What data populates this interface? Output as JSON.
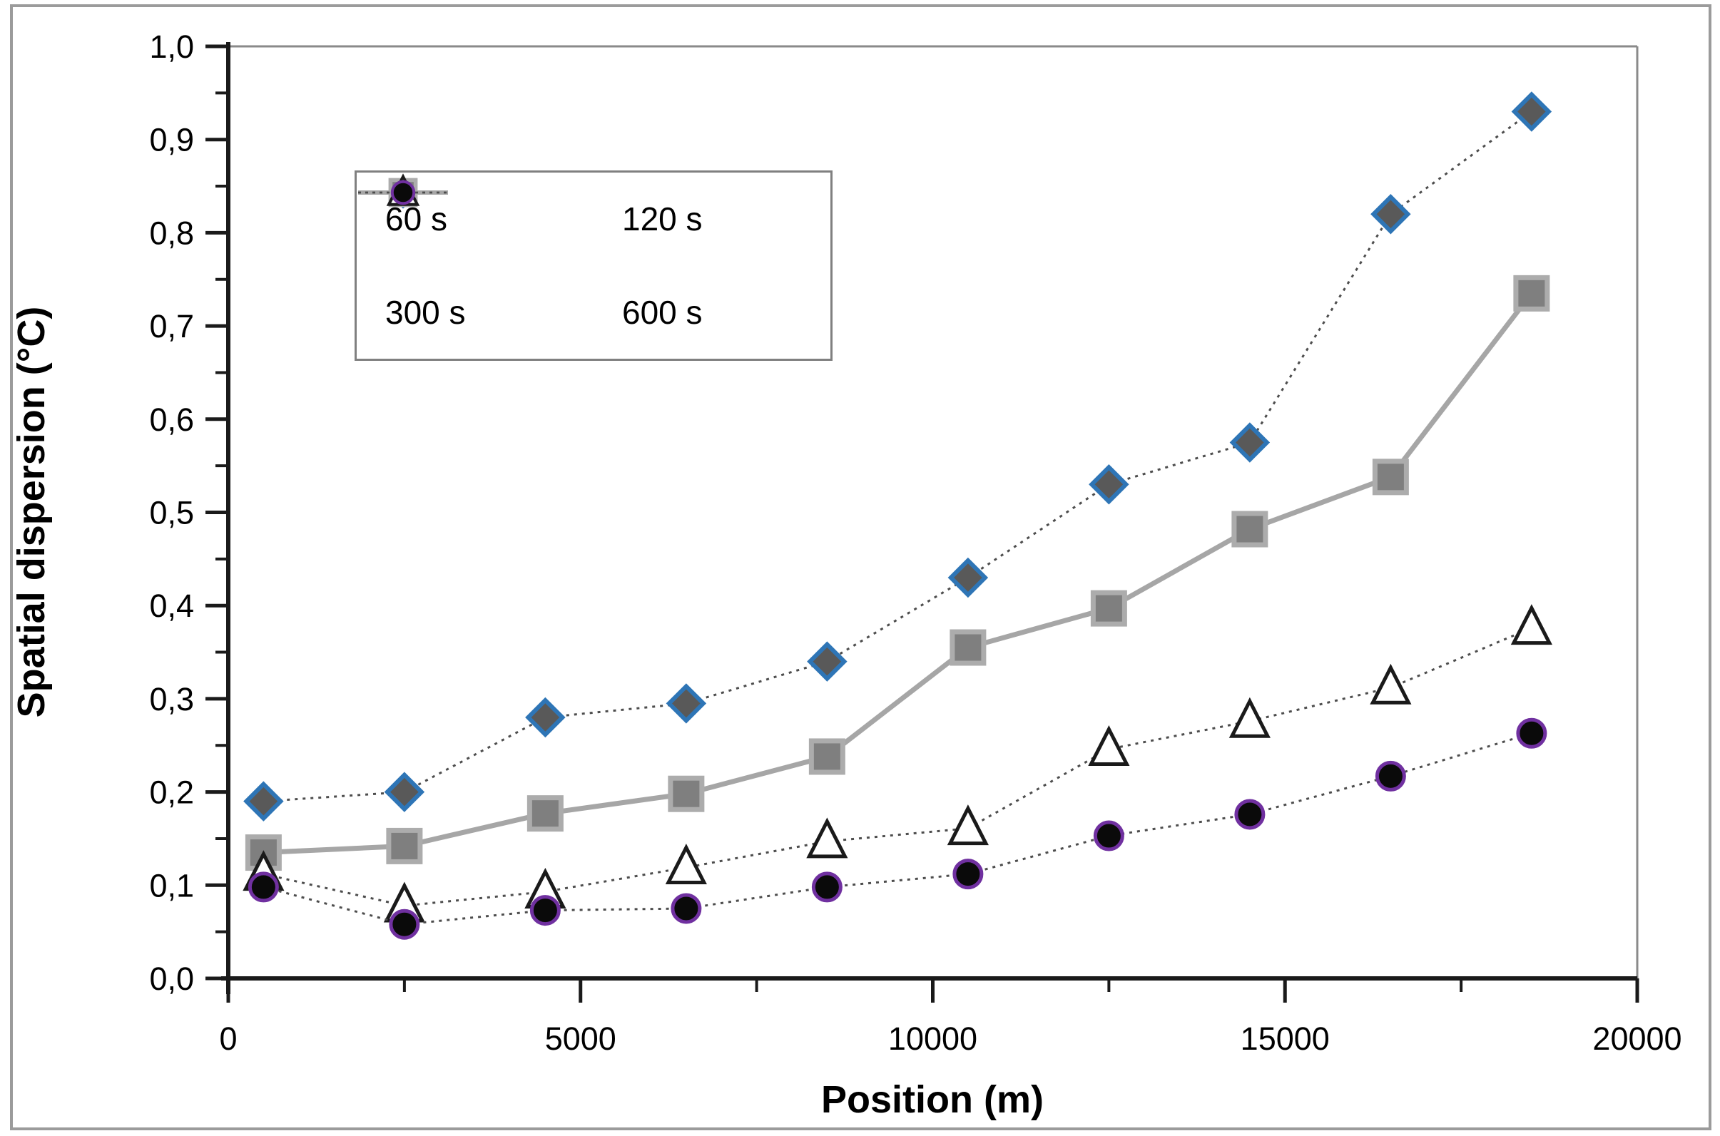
{
  "figure": {
    "frame_color": "#9b9b9b",
    "plot_border_color": "#8a8a8a",
    "axis_color": "#1a1a1a",
    "background": "#ffffff"
  },
  "chart_data": {
    "type": "line",
    "title": "",
    "xlabel": "Position (m)",
    "ylabel": "Spatial dispersion (°C)",
    "xlim": [
      0,
      20000
    ],
    "ylim": [
      0.0,
      1.0
    ],
    "grid": false,
    "legend_position": "upper-left-inside",
    "decimal_separator": ",",
    "x_major_ticks": [
      0,
      5000,
      10000,
      15000,
      20000
    ],
    "x_tick_labels": [
      "0",
      "5000",
      "10000",
      "15000",
      "20000"
    ],
    "x_minor_step": 2500,
    "y_major_step": 0.1,
    "y_minor_step": 0.05,
    "y_tick_labels": [
      "0,0",
      "0,1",
      "0,2",
      "0,3",
      "0,4",
      "0,5",
      "0,6",
      "0,7",
      "0,8",
      "0,9",
      "1,0"
    ],
    "x": [
      500,
      2500,
      4500,
      6500,
      8500,
      10500,
      12500,
      14500,
      16500,
      18500
    ],
    "series": [
      {
        "name": "60 s",
        "marker": "diamond",
        "line": "dotted",
        "line_color": "#4d4d4d",
        "marker_fill": "#595959",
        "marker_stroke": "#2E75B6",
        "values": [
          0.19,
          0.2,
          0.28,
          0.295,
          0.34,
          0.43,
          0.53,
          0.575,
          0.82,
          0.93
        ]
      },
      {
        "name": "120 s",
        "marker": "square",
        "line": "solid",
        "line_color": "#A6A6A6",
        "marker_fill": "#7F7F7F",
        "marker_stroke": "#ACACAC",
        "values": [
          0.135,
          0.142,
          0.177,
          0.198,
          0.238,
          0.355,
          0.397,
          0.482,
          0.538,
          0.735
        ]
      },
      {
        "name": "300 s",
        "marker": "triangle",
        "line": "dotted",
        "line_color": "#4d4d4d",
        "marker_fill": "#FFFFFF",
        "marker_stroke": "#1a1a1a",
        "values": [
          0.112,
          0.078,
          0.093,
          0.119,
          0.147,
          0.161,
          0.246,
          0.276,
          0.312,
          0.376
        ]
      },
      {
        "name": "600 s",
        "marker": "circle",
        "line": "dotted",
        "line_color": "#4d4d4d",
        "marker_fill": "#0a0a0a",
        "marker_stroke": "#7030A0",
        "values": [
          0.098,
          0.058,
          0.073,
          0.075,
          0.098,
          0.112,
          0.153,
          0.176,
          0.217,
          0.263
        ]
      }
    ]
  }
}
